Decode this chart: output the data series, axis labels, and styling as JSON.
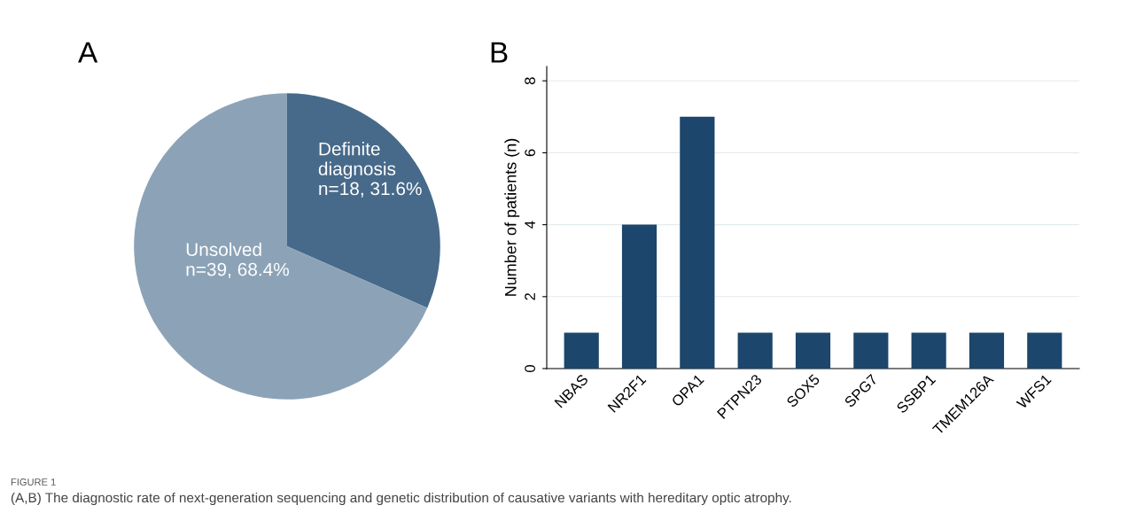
{
  "chart_data": [
    {
      "type": "pie",
      "title": "A",
      "categories": [
        "Definite\ndiagnosis",
        "Unsolved"
      ],
      "values": [
        18,
        39
      ],
      "value_labels": [
        "n=18, 31.6%",
        "n=39, 68.4%"
      ],
      "colors": [
        "#476a8a",
        "#8ca3b7"
      ],
      "annotations": [
        "FIGURE 1",
        "(A,B) The diagnostic rate of next-generation sequencing and genetic distribution of causative variants with hereditary optic atrophy."
      ]
    },
    {
      "type": "bar",
      "title": "B",
      "ylabel": "Number of patients (n)",
      "categories": [
        "NBAS",
        "NR2F1",
        "OPA1",
        "PTPN23",
        "SOX5",
        "SPG7",
        "SSBP1",
        "TMEM126A",
        "WFS1"
      ],
      "values": [
        1,
        4,
        7,
        1,
        1,
        1,
        1,
        1,
        1
      ],
      "color": "#1c466b",
      "ylim": [
        0,
        8.4
      ],
      "yticks": [
        0,
        2,
        4,
        6,
        8
      ],
      "grid": "y"
    }
  ]
}
